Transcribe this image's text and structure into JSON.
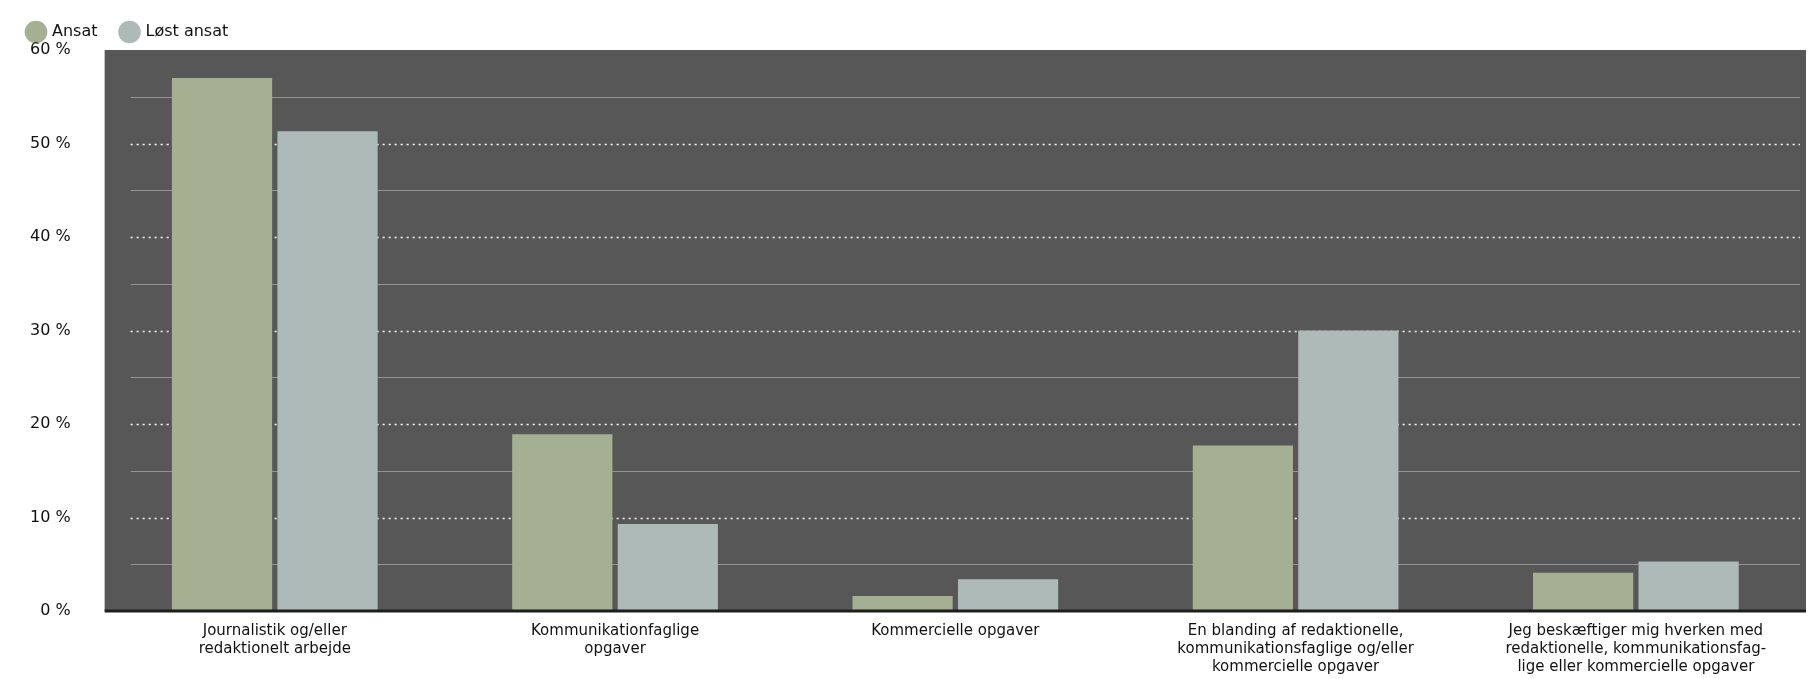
{
  "chart_data": {
    "type": "bar",
    "categories": [
      "Journalistik og/eller\nredaktionelt arbejde",
      "Kommunikationfaglige\nopgaver",
      "Kommercielle opgaver",
      "En blanding af redaktionelle,\nkommunikationsfaglige og/eller\nkommercielle opgaver",
      "Jeg beskæftiger mig hverken med\nredaktionelle, kommunikationsfag-\nlige eller kommercielle opgaver"
    ],
    "series": [
      {
        "name": "Ansat",
        "color": "#a5b092",
        "values": [
          57.0,
          18.9,
          1.6,
          17.7,
          4.1
        ]
      },
      {
        "name": "Løst ansat",
        "color": "#aebab8",
        "values": [
          51.3,
          9.3,
          3.4,
          30.0,
          5.3
        ]
      }
    ],
    "ylim": [
      0,
      60
    ],
    "yticks": [
      {
        "value": 0,
        "label": "0 %"
      },
      {
        "value": 5,
        "label": null
      },
      {
        "value": 10,
        "label": "10 %"
      },
      {
        "value": 15,
        "label": null
      },
      {
        "value": 20,
        "label": "20 %"
      },
      {
        "value": 25,
        "label": null
      },
      {
        "value": 30,
        "label": "30 %"
      },
      {
        "value": 35,
        "label": null
      },
      {
        "value": 40,
        "label": "40 %"
      },
      {
        "value": 45,
        "label": null
      },
      {
        "value": 50,
        "label": "50 %"
      },
      {
        "value": 55,
        "label": null
      },
      {
        "value": 60,
        "label": "60 %"
      }
    ],
    "grid": "y",
    "legend": "top left"
  }
}
